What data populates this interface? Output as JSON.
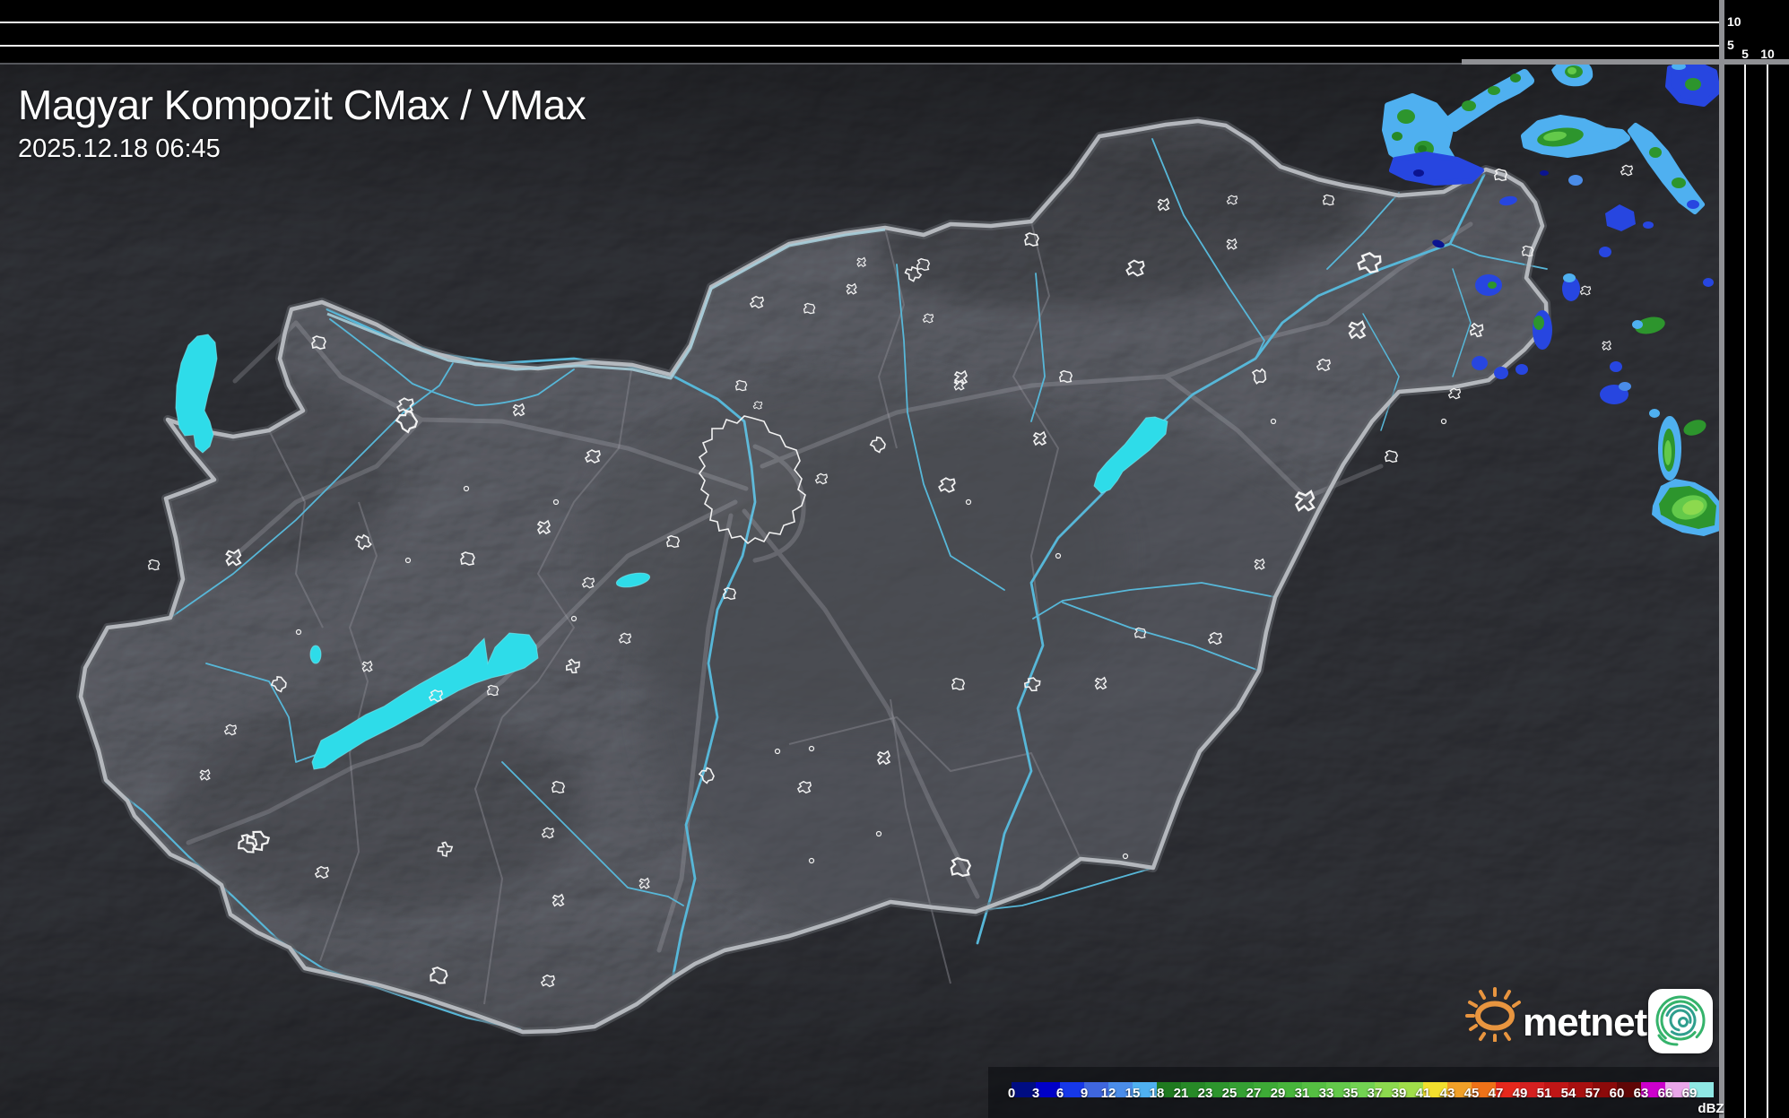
{
  "header": {
    "title": "Magyar Kompozit CMax / VMax",
    "timestamp": "2025.12.18 06:45"
  },
  "profile_axes": {
    "top_ticks": [
      "10",
      "5"
    ],
    "right_ticks": [
      "5",
      "10"
    ]
  },
  "legend": {
    "unit": "dBZ",
    "values": [
      "0",
      "3",
      "6",
      "9",
      "12",
      "15",
      "18",
      "21",
      "23",
      "25",
      "27",
      "29",
      "31",
      "33",
      "35",
      "37",
      "39",
      "41",
      "43",
      "45",
      "47",
      "49",
      "51",
      "54",
      "57",
      "60",
      "63",
      "66",
      "69"
    ],
    "colors": [
      "#000d82",
      "#0000c8",
      "#1638e8",
      "#3f66dd",
      "#4a8ce8",
      "#4fb0f0",
      "#1f7a1f",
      "#278927",
      "#2d952d",
      "#35a033",
      "#3daa36",
      "#47b53b",
      "#55bf42",
      "#63c94a",
      "#72d352",
      "#8cd94e",
      "#a0dd4a",
      "#f2df2e",
      "#f0a028",
      "#ee7218",
      "#e5281c",
      "#d42020",
      "#c01616",
      "#a81010",
      "#8c0a0a",
      "#600606",
      "#cc00cc",
      "#e9a6e9",
      "#8fe8e4"
    ]
  },
  "branding": {
    "brand": "metnet"
  },
  "map": {
    "accent_colors": {
      "lake_water": "#2edce9",
      "river": "#57b7d8",
      "country_border": "#b9bdc2",
      "settlement_outline": "#f2f2f2",
      "motorway": "#c8c8d0"
    }
  }
}
